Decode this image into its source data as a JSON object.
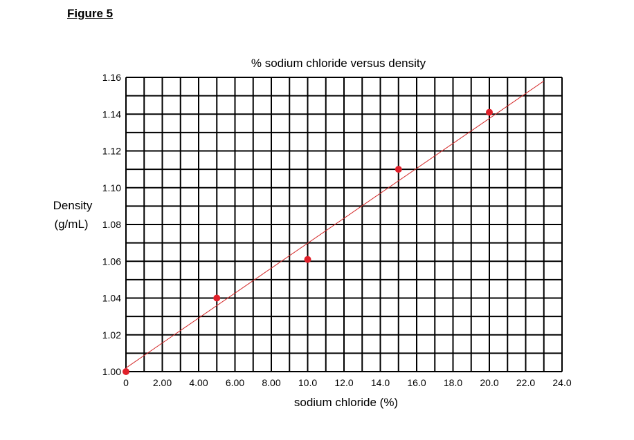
{
  "figure_label": "Figure 5",
  "chart_data": {
    "type": "scatter",
    "title": "% sodium chloride versus density",
    "xlabel": "sodium chloride (%)",
    "ylabel_line1": "Density",
    "ylabel_line2": "(g/mL)",
    "xlim": [
      0,
      24
    ],
    "ylim": [
      1.0,
      1.16
    ],
    "grid": true,
    "grid_x_step": 1,
    "grid_y_step": 0.01,
    "x_ticks": [
      0,
      2,
      4,
      6,
      8,
      10,
      12,
      14,
      16,
      18,
      20,
      22,
      24
    ],
    "x_tick_labels": [
      "0",
      "2.00",
      "4.00",
      "6.00",
      "8.00",
      "10.0",
      "12.0",
      "14.0",
      "16.0",
      "18.0",
      "20.0",
      "22.0",
      "24.0"
    ],
    "y_ticks": [
      1.0,
      1.02,
      1.04,
      1.06,
      1.08,
      1.1,
      1.12,
      1.14,
      1.16
    ],
    "y_tick_labels": [
      "1.00",
      "1.02",
      "1.04",
      "1.06",
      "1.08",
      "1.10",
      "1.12",
      "1.14",
      "1.16"
    ],
    "points": [
      {
        "x": 0,
        "y": 1.0
      },
      {
        "x": 5,
        "y": 1.04
      },
      {
        "x": 10,
        "y": 1.061
      },
      {
        "x": 15,
        "y": 1.11
      },
      {
        "x": 20,
        "y": 1.141
      }
    ],
    "trendline": {
      "x": [
        0,
        23
      ],
      "y": [
        1.002,
        1.158
      ]
    },
    "point_color": "#e0202a",
    "line_color": "#d42a2a",
    "grid_color": "#000000"
  }
}
